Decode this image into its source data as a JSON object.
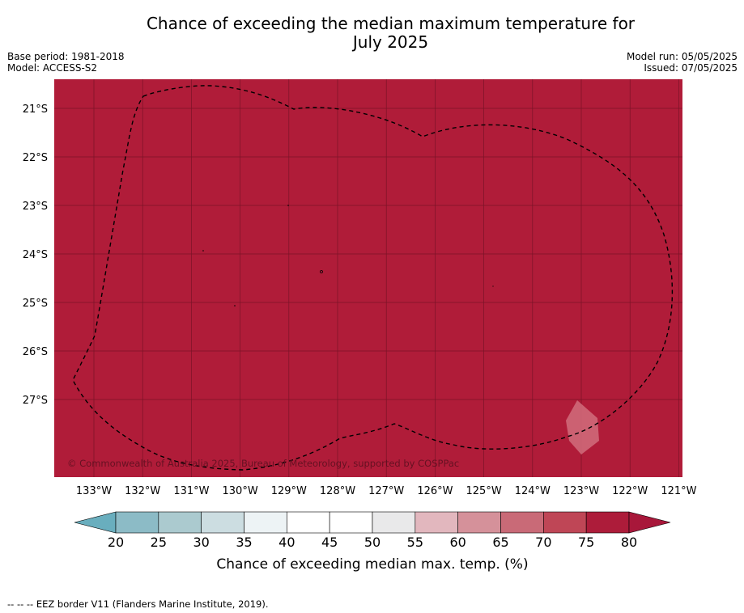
{
  "title_line1": "Chance of exceeding the median maximum temperature for",
  "title_line2": "July 2025",
  "base_period": "Base period: 1981-2018",
  "model": "Model: ACCESS-S2",
  "model_run": "Model run: 05/05/2025",
  "issued": "Issued: 07/05/2025",
  "copyright": "© Commonwealth of Australia 2025, Bureau of Meteorology, supported by COSPPac",
  "footnote": "--  --  -- EEZ border V11 (Flanders Marine Institute, 2019).",
  "map": {
    "fill_color": "#b01c39",
    "lat_labels": [
      "21°S",
      "22°S",
      "23°S",
      "24°S",
      "25°S",
      "26°S",
      "27°S"
    ],
    "lon_labels": [
      "133°W",
      "132°W",
      "131°W",
      "130°W",
      "129°W",
      "128°W",
      "127°W",
      "126°W",
      "125°W",
      "124°W",
      "123°W",
      "122°W",
      "121°W"
    ]
  },
  "colorbar": {
    "label": "Chance of exceeding median max. temp. (%)",
    "ticks": [
      "20",
      "25",
      "30",
      "35",
      "40",
      "45",
      "50",
      "55",
      "60",
      "65",
      "70",
      "75",
      "80"
    ],
    "colors": [
      "#69aebe",
      "#8cbbc6",
      "#abcacf",
      "#ccdde1",
      "#edf3f5",
      "#ffffff",
      "#ffffff",
      "#e9e9ea",
      "#e2b7be",
      "#d5919a",
      "#c96a77",
      "#bf4656",
      "#ad1c3a"
    ]
  }
}
